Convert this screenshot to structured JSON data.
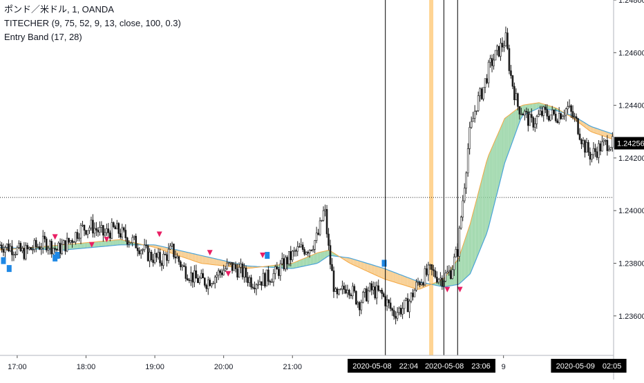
{
  "legend": {
    "line1": "ポンド／米ドル, 1, OANDA",
    "line2": "TITECHER (9, 75, 52, 9, 13, close, 100, 0.3)",
    "line3": "Entry Band (17, 28)"
  },
  "colors": {
    "up_candle": "#1b1b1b",
    "down_candle": "#1b1b1b",
    "fast_line": "#f4a742",
    "slow_line": "#4aa3d8",
    "band_bull": "#8fd19e",
    "band_bear": "#f6c47a",
    "buy_marker": "#1e88e5",
    "sell_marker": "#e91e63",
    "crosshair": "#000000",
    "highlight": "#ffcc80",
    "price_tag_bg": "#000000"
  },
  "chart_data": {
    "type": "candlestick",
    "symbol": "ポンド／米ドル",
    "timeframe": "1",
    "source": "OANDA",
    "ylim": [
      1.2345,
      1.248
    ],
    "y_ticks": [
      {
        "value": 1.236,
        "label": "1.23600"
      },
      {
        "value": 1.238,
        "label": "1.23800"
      },
      {
        "value": 1.24,
        "label": "1.24000"
      },
      {
        "value": 1.242,
        "label": "1.24200"
      },
      {
        "value": 1.244,
        "label": "1.24400"
      },
      {
        "value": 1.246,
        "label": "1.24600"
      },
      {
        "value": 1.248,
        "label": "1.24800"
      }
    ],
    "x_ticks": [
      {
        "t": 0,
        "label": "17:00"
      },
      {
        "t": 60,
        "label": "18:00"
      },
      {
        "t": 120,
        "label": "19:00"
      },
      {
        "t": 180,
        "label": "20:00"
      },
      {
        "t": 240,
        "label": "21:00"
      },
      {
        "t": 424,
        "label": "9"
      }
    ],
    "time_range_minutes": [
      -15,
      520
    ],
    "current_price": {
      "value": 1.24256,
      "label": "1.24256"
    },
    "horizontal_line": 1.2405,
    "path_points": [
      [
        -15,
        1.2387
      ],
      [
        -5,
        1.2386
      ],
      [
        5,
        1.2384
      ],
      [
        15,
        1.2386
      ],
      [
        25,
        1.2388
      ],
      [
        35,
        1.2385
      ],
      [
        45,
        1.2388
      ],
      [
        55,
        1.2393
      ],
      [
        65,
        1.2394
      ],
      [
        75,
        1.2391
      ],
      [
        85,
        1.2393
      ],
      [
        95,
        1.239
      ],
      [
        105,
        1.2387
      ],
      [
        115,
        1.2383
      ],
      [
        125,
        1.2381
      ],
      [
        135,
        1.2385
      ],
      [
        145,
        1.2378
      ],
      [
        155,
        1.2374
      ],
      [
        165,
        1.2373
      ],
      [
        175,
        1.2376
      ],
      [
        185,
        1.2379
      ],
      [
        195,
        1.2377
      ],
      [
        205,
        1.2373
      ],
      [
        215,
        1.2374
      ],
      [
        225,
        1.2376
      ],
      [
        235,
        1.2381
      ],
      [
        245,
        1.2385
      ],
      [
        255,
        1.2386
      ],
      [
        262,
        1.239
      ],
      [
        268,
        1.2401
      ],
      [
        272,
        1.2383
      ],
      [
        278,
        1.2366
      ],
      [
        288,
        1.2372
      ],
      [
        298,
        1.2365
      ],
      [
        308,
        1.237
      ],
      [
        318,
        1.2368
      ],
      [
        328,
        1.2361
      ],
      [
        340,
        1.2364
      ],
      [
        350,
        1.2373
      ],
      [
        360,
        1.2377
      ],
      [
        370,
        1.2374
      ],
      [
        378,
        1.2377
      ],
      [
        384,
        1.2385
      ],
      [
        388,
        1.2402
      ],
      [
        394,
        1.2428
      ],
      [
        400,
        1.244
      ],
      [
        406,
        1.2446
      ],
      [
        412,
        1.2455
      ],
      [
        420,
        1.2461
      ],
      [
        426,
        1.2465
      ],
      [
        430,
        1.2452
      ],
      [
        436,
        1.244
      ],
      [
        442,
        1.2437
      ],
      [
        448,
        1.2433
      ],
      [
        458,
        1.2437
      ],
      [
        470,
        1.2436
      ],
      [
        480,
        1.2439
      ],
      [
        488,
        1.2433
      ],
      [
        494,
        1.2425
      ],
      [
        500,
        1.2421
      ],
      [
        508,
        1.2424
      ],
      [
        516,
        1.2426
      ],
      [
        520,
        1.2425
      ]
    ],
    "fast_points": [
      [
        -15,
        1.2385
      ],
      [
        40,
        1.2387
      ],
      [
        90,
        1.2389
      ],
      [
        120,
        1.2386
      ],
      [
        160,
        1.238
      ],
      [
        200,
        1.2378
      ],
      [
        240,
        1.238
      ],
      [
        262,
        1.2384
      ],
      [
        272,
        1.2385
      ],
      [
        290,
        1.238
      ],
      [
        320,
        1.2374
      ],
      [
        350,
        1.237
      ],
      [
        372,
        1.2374
      ],
      [
        385,
        1.2382
      ],
      [
        395,
        1.2395
      ],
      [
        410,
        1.242
      ],
      [
        425,
        1.2435
      ],
      [
        440,
        1.244
      ],
      [
        455,
        1.2441
      ],
      [
        470,
        1.2439
      ],
      [
        485,
        1.2435
      ],
      [
        500,
        1.243
      ],
      [
        520,
        1.2427
      ]
    ],
    "slow_points": [
      [
        -15,
        1.2386
      ],
      [
        40,
        1.2385
      ],
      [
        90,
        1.2387
      ],
      [
        120,
        1.2387
      ],
      [
        160,
        1.2383
      ],
      [
        200,
        1.2379
      ],
      [
        240,
        1.2378
      ],
      [
        262,
        1.238
      ],
      [
        272,
        1.2383
      ],
      [
        290,
        1.2382
      ],
      [
        320,
        1.2378
      ],
      [
        350,
        1.2373
      ],
      [
        372,
        1.2371
      ],
      [
        385,
        1.2372
      ],
      [
        395,
        1.2376
      ],
      [
        410,
        1.2392
      ],
      [
        425,
        1.2418
      ],
      [
        440,
        1.2436
      ],
      [
        455,
        1.2439
      ],
      [
        470,
        1.2438
      ],
      [
        485,
        1.2436
      ],
      [
        500,
        1.2432
      ],
      [
        520,
        1.2429
      ]
    ],
    "buy_signals": [
      {
        "t": -12,
        "y": 1.2381
      },
      {
        "t": -7,
        "y": 1.2378
      },
      {
        "t": 33,
        "y": 1.2382
      },
      {
        "t": 35,
        "y": 1.2383
      },
      {
        "t": 218,
        "y": 1.2383
      },
      {
        "t": 320,
        "y": 1.238
      }
    ],
    "sell_signals": [
      {
        "t": 33,
        "y": 1.239
      },
      {
        "t": 65,
        "y": 1.2387
      },
      {
        "t": 78,
        "y": 1.2389
      },
      {
        "t": 124,
        "y": 1.2391
      },
      {
        "t": 168,
        "y": 1.2384
      },
      {
        "t": 184,
        "y": 1.2376
      },
      {
        "t": 214,
        "y": 1.2383
      },
      {
        "t": 375,
        "y": 1.237
      },
      {
        "t": 386,
        "y": 1.237
      }
    ],
    "cursor_lines": [
      {
        "t": 321,
        "label": "2020-05-08　22:04"
      },
      {
        "t": 372,
        "label": "2020-05-08　23:06"
      },
      {
        "t": 384,
        "label": ""
      }
    ],
    "partial_label": "202(",
    "right_date_label": "2020-05-09　02:05",
    "highlight_t": 361
  }
}
